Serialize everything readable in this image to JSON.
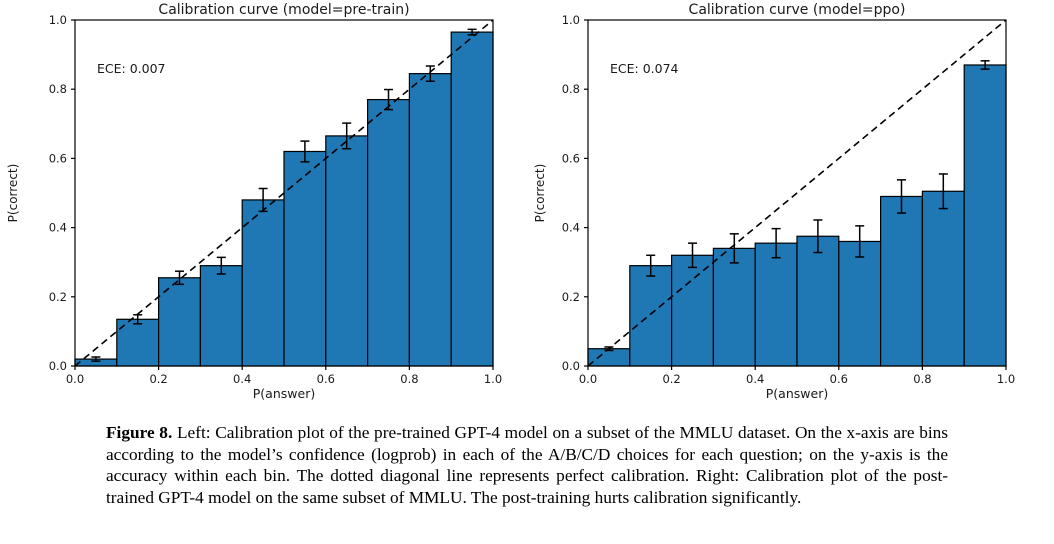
{
  "page": {
    "background": "#ffffff"
  },
  "colors": {
    "bar_fill": "#1f77b4",
    "bar_edge": "#000000",
    "diagonal_line": "#000000",
    "error_bar": "#000000",
    "axis": "#000000"
  },
  "chart_data": [
    {
      "type": "bar",
      "title": "Calibration curve (model=pre-train)",
      "annotation": "ECE: 0.007",
      "xlabel": "P(answer)",
      "ylabel": "P(correct)",
      "xlim": [
        0.0,
        1.0
      ],
      "ylim": [
        0.0,
        1.0
      ],
      "xticks": [
        0.0,
        0.2,
        0.4,
        0.6,
        0.8,
        1.0
      ],
      "yticks": [
        0.0,
        0.2,
        0.4,
        0.6,
        0.8,
        1.0
      ],
      "grid": false,
      "diagonal_reference_line": true,
      "bin_width": 0.1,
      "bin_lefts": [
        0.0,
        0.1,
        0.2,
        0.3,
        0.4,
        0.5,
        0.6,
        0.7,
        0.8,
        0.9
      ],
      "values": [
        0.02,
        0.135,
        0.255,
        0.29,
        0.48,
        0.62,
        0.665,
        0.77,
        0.845,
        0.965
      ],
      "errors": [
        0.006,
        0.013,
        0.019,
        0.024,
        0.033,
        0.03,
        0.037,
        0.029,
        0.022,
        0.008
      ]
    },
    {
      "type": "bar",
      "title": "Calibration curve (model=ppo)",
      "annotation": "ECE: 0.074",
      "xlabel": "P(answer)",
      "ylabel": "P(correct)",
      "xlim": [
        0.0,
        1.0
      ],
      "ylim": [
        0.0,
        1.0
      ],
      "xticks": [
        0.0,
        0.2,
        0.4,
        0.6,
        0.8,
        1.0
      ],
      "yticks": [
        0.0,
        0.2,
        0.4,
        0.6,
        0.8,
        1.0
      ],
      "grid": false,
      "diagonal_reference_line": true,
      "bin_width": 0.1,
      "bin_lefts": [
        0.0,
        0.1,
        0.2,
        0.3,
        0.4,
        0.5,
        0.6,
        0.7,
        0.8,
        0.9
      ],
      "values": [
        0.05,
        0.29,
        0.32,
        0.34,
        0.355,
        0.375,
        0.36,
        0.49,
        0.505,
        0.87
      ],
      "errors": [
        0.005,
        0.03,
        0.035,
        0.042,
        0.042,
        0.047,
        0.045,
        0.048,
        0.05,
        0.012
      ]
    }
  ],
  "caption": {
    "label": "Figure 8.",
    "text": "Left: Calibration plot of the pre-trained GPT-4 model on a subset of the MMLU dataset. On the x-axis are bins according to the model’s confidence (logprob) in each of the A/B/C/D choices for each question; on the y-axis is the accuracy within each bin. The dotted diagonal line represents perfect calibration. Right: Calibration plot of the post-trained GPT-4 model on the same subset of MMLU. The post-training hurts calibration significantly."
  }
}
